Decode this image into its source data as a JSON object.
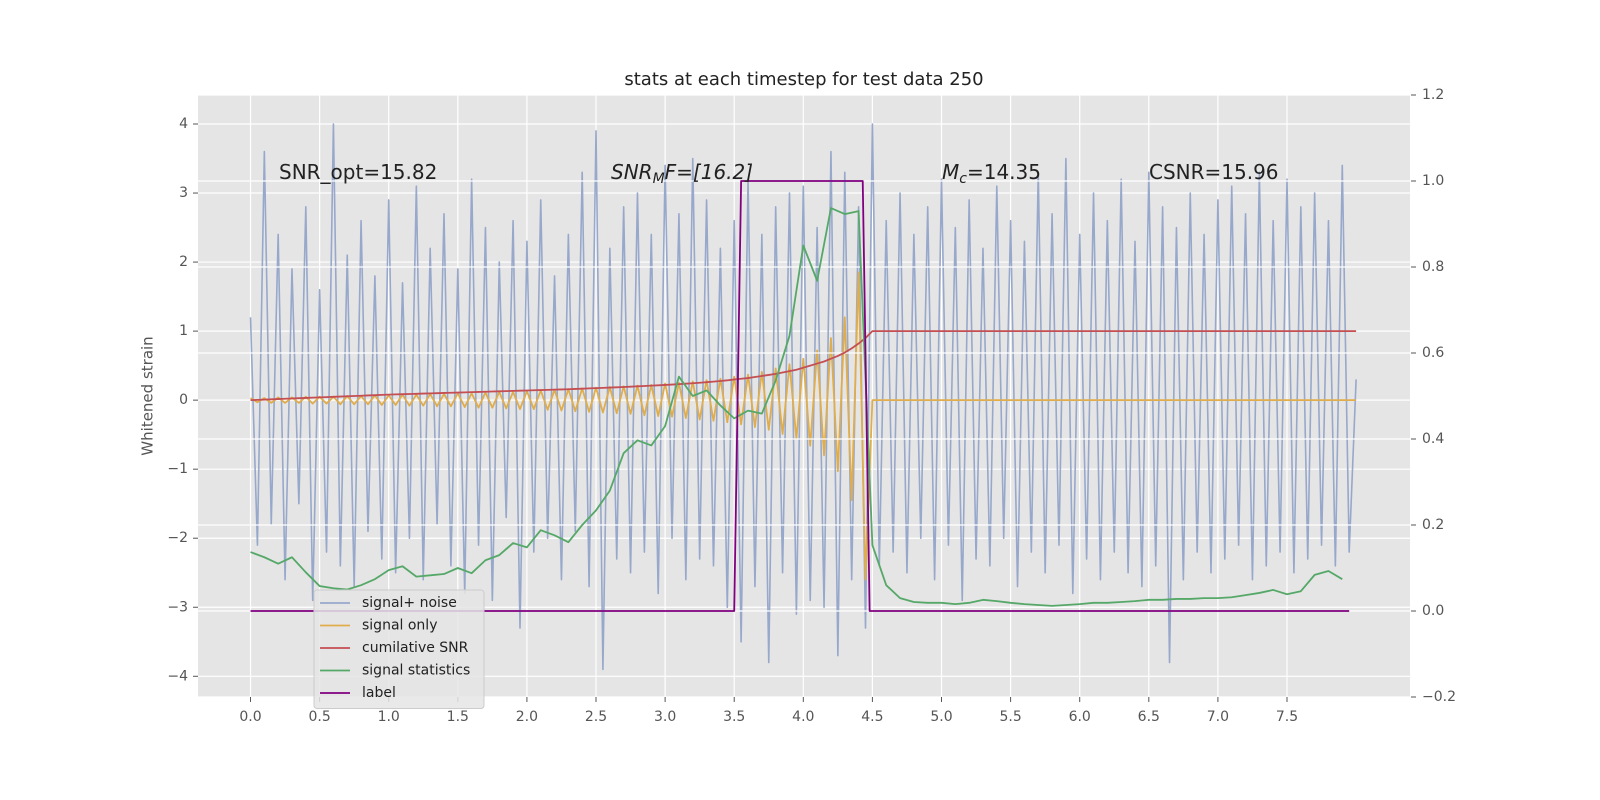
{
  "chart_data": {
    "type": "line",
    "title": "stats at each timestep for test data 250",
    "ylabel": "Whitened strain",
    "annotations": [
      [
        "SNR_opt=15.82"
      ],
      [
        "SNR",
        "M",
        "F=[16.2]"
      ],
      [
        "M",
        "c",
        "=14.35"
      ],
      [
        "CSNR=15.96"
      ]
    ],
    "xlim": [
      -0.38,
      8.39
    ],
    "ylim": [
      -4.3,
      4.42
    ],
    "y2lim": [
      -0.2,
      1.2
    ],
    "xticks": [
      {
        "value": 0,
        "label": "0.0"
      },
      0.5,
      {
        "value": 1,
        "label": "1.0"
      },
      1.5,
      {
        "value": 2,
        "label": "2.0"
      },
      2.5,
      {
        "value": 3,
        "label": "3.0"
      },
      3.5,
      {
        "value": 4,
        "label": "4.0"
      },
      4.5,
      {
        "value": 5,
        "label": "5.0"
      },
      5.5,
      {
        "value": 6,
        "label": "6.0"
      },
      6.5,
      {
        "value": 7,
        "label": "7.0"
      },
      7.5
    ],
    "yticks": [
      {
        "value": -4,
        "label": "−4"
      },
      {
        "value": -3,
        "label": "−3"
      },
      {
        "value": -2,
        "label": "−2"
      },
      {
        "value": -1,
        "label": "−1"
      },
      0,
      1,
      2,
      3,
      4
    ],
    "y2ticks": [
      {
        "value": -0.2,
        "label": "−0.2"
      },
      {
        "value": 0,
        "label": "0.0"
      },
      0.2,
      0.4,
      0.6,
      0.8,
      {
        "value": 1,
        "label": "1.0"
      },
      1.2
    ],
    "grid": true,
    "legend": "lower left",
    "x": [
      0,
      0.05,
      0.1,
      0.15,
      0.2,
      0.25,
      0.3,
      0.35,
      0.4,
      0.45,
      0.5,
      0.55,
      0.6,
      0.65,
      0.7,
      0.75,
      0.8,
      0.85,
      0.9,
      0.95,
      1,
      1.05,
      1.1,
      1.15,
      1.2,
      1.25,
      1.3,
      1.35,
      1.4,
      1.45,
      1.5,
      1.55,
      1.6,
      1.65,
      1.7,
      1.75,
      1.8,
      1.85,
      1.9,
      1.95,
      2,
      2.05,
      2.1,
      2.15,
      2.2,
      2.25,
      2.3,
      2.35,
      2.4,
      2.45,
      2.5,
      2.55,
      2.6,
      2.65,
      2.7,
      2.75,
      2.8,
      2.85,
      2.9,
      2.95,
      3,
      3.05,
      3.1,
      3.15,
      3.2,
      3.25,
      3.3,
      3.35,
      3.4,
      3.45,
      3.5,
      3.55,
      3.6,
      3.65,
      3.7,
      3.75,
      3.8,
      3.85,
      3.9,
      3.95,
      4,
      4.05,
      4.1,
      4.15,
      4.2,
      4.25,
      4.3,
      4.35,
      4.4,
      4.45,
      4.5,
      4.55,
      4.6,
      4.65,
      4.7,
      4.75,
      4.8,
      4.85,
      4.9,
      4.95,
      5,
      5.05,
      5.1,
      5.15,
      5.2,
      5.25,
      5.3,
      5.35,
      5.4,
      5.45,
      5.5,
      5.55,
      5.6,
      5.65,
      5.7,
      5.75,
      5.8,
      5.85,
      5.9,
      5.95,
      6,
      6.05,
      6.1,
      6.15,
      6.2,
      6.25,
      6.3,
      6.35,
      6.4,
      6.45,
      6.5,
      6.55,
      6.6,
      6.65,
      6.7,
      6.75,
      6.8,
      6.85,
      6.9,
      6.95,
      7,
      7.05,
      7.1,
      7.15,
      7.2,
      7.25,
      7.3,
      7.35,
      7.4,
      7.45,
      7.5,
      7.55,
      7.6,
      7.65,
      7.7,
      7.75,
      7.8,
      7.85,
      7.9,
      7.95,
      8
    ],
    "series": [
      {
        "name": "signal+ noise",
        "color": "#97a8cb",
        "values": [
          1.2,
          -2.1,
          3.6,
          -1.8,
          2.4,
          -2.6,
          1.9,
          -1.5,
          2.8,
          -2.9,
          1.6,
          -2.2,
          4.0,
          -2.4,
          2.1,
          -2.7,
          2.6,
          -1.9,
          1.8,
          -2.3,
          2.9,
          -2.5,
          1.7,
          -2.0,
          3.1,
          -2.6,
          2.2,
          -1.8,
          2.7,
          -2.4,
          1.9,
          -2.8,
          3.2,
          -2.1,
          2.5,
          -2.9,
          2.0,
          -1.7,
          2.6,
          -3.3,
          2.3,
          -2.2,
          2.9,
          -2.0,
          1.8,
          -2.6,
          2.4,
          -1.9,
          3.3,
          -2.7,
          3.9,
          -3.9,
          2.2,
          -2.3,
          2.8,
          -2.5,
          3.0,
          -2.2,
          2.4,
          -2.8,
          3.4,
          -2.0,
          2.7,
          -2.6,
          3.5,
          -2.3,
          2.9,
          -2.4,
          2.2,
          -3.0,
          2.6,
          -3.5,
          3.2,
          -2.7,
          2.4,
          -3.8,
          2.8,
          -2.5,
          3.0,
          -3.1,
          3.1,
          -2.9,
          2.5,
          -3.0,
          3.6,
          -3.7,
          3.3,
          -2.6,
          2.8,
          -3.3,
          4.0,
          -2.4,
          2.6,
          -2.2,
          3.0,
          -2.5,
          2.4,
          -2.0,
          2.8,
          -2.6,
          3.2,
          -2.1,
          2.5,
          -2.9,
          2.9,
          -2.3,
          2.2,
          -2.4,
          3.1,
          -2.0,
          2.6,
          -2.7,
          2.3,
          -2.2,
          3.3,
          -2.5,
          2.7,
          -2.1,
          3.5,
          -2.8,
          2.4,
          -2.3,
          3.0,
          -2.6,
          2.6,
          -2.2,
          3.2,
          -2.5,
          2.3,
          -2.7,
          3.3,
          -2.4,
          2.8,
          -3.8,
          2.5,
          -2.6,
          3.0,
          -2.2,
          2.4,
          -2.5,
          2.9,
          -2.3,
          3.1,
          -2.1,
          2.7,
          -2.6,
          3.3,
          -2.4,
          2.6,
          -2.2,
          3.2,
          -2.5,
          2.8,
          -2.3,
          3.0,
          -2.1,
          2.6,
          -2.4,
          3.4,
          -2.2,
          0.3
        ]
      },
      {
        "name": "signal only",
        "color": "#e0ad4c",
        "values": [
          0.03,
          -0.03,
          0.03,
          -0.04,
          0.04,
          -0.04,
          0.04,
          -0.04,
          0.05,
          -0.05,
          0.05,
          -0.05,
          0.05,
          -0.06,
          0.06,
          -0.06,
          0.06,
          -0.06,
          0.07,
          -0.07,
          0.07,
          -0.07,
          0.08,
          -0.08,
          0.08,
          -0.08,
          0.09,
          -0.09,
          0.09,
          -0.09,
          0.1,
          -0.1,
          0.1,
          -0.11,
          0.11,
          -0.11,
          0.12,
          -0.12,
          0.12,
          -0.13,
          0.13,
          -0.13,
          0.14,
          -0.14,
          0.15,
          -0.15,
          0.16,
          -0.16,
          0.17,
          -0.17,
          0.18,
          -0.18,
          0.19,
          -0.19,
          0.2,
          -0.2,
          0.21,
          -0.22,
          0.22,
          -0.23,
          0.24,
          -0.24,
          0.25,
          -0.26,
          0.27,
          -0.28,
          0.29,
          -0.3,
          0.31,
          -0.32,
          0.34,
          -0.35,
          0.37,
          -0.39,
          0.41,
          -0.43,
          0.46,
          -0.49,
          0.52,
          -0.56,
          0.6,
          -0.66,
          0.72,
          -0.8,
          0.9,
          -1.03,
          1.2,
          -1.45,
          1.85,
          -2.6,
          0,
          0,
          0,
          0,
          0,
          0,
          0,
          0,
          0,
          0,
          0,
          0,
          0,
          0,
          0,
          0,
          0,
          0,
          0,
          0,
          0,
          0,
          0,
          0,
          0,
          0,
          0,
          0,
          0,
          0,
          0,
          0,
          0,
          0,
          0,
          0,
          0,
          0,
          0,
          0,
          0,
          0,
          0,
          0,
          0,
          0,
          0,
          0,
          0,
          0,
          0,
          0,
          0,
          0,
          0,
          0,
          0,
          0,
          0,
          0,
          0,
          0,
          0,
          0,
          0,
          0,
          0,
          0,
          0,
          0,
          0
        ]
      },
      {
        "name": "cumilative SNR",
        "color": "#c44e52",
        "values": [
          0,
          0.004,
          0.008,
          0.012,
          0.016,
          0.02,
          0.024,
          0.028,
          0.032,
          0.036,
          0.04,
          0.044,
          0.048,
          0.052,
          0.056,
          0.06,
          0.064,
          0.068,
          0.072,
          0.076,
          0.08,
          0.083,
          0.086,
          0.089,
          0.092,
          0.095,
          0.098,
          0.101,
          0.104,
          0.107,
          0.11,
          0.113,
          0.116,
          0.119,
          0.122,
          0.125,
          0.128,
          0.131,
          0.134,
          0.137,
          0.14,
          0.143,
          0.146,
          0.149,
          0.152,
          0.155,
          0.158,
          0.162,
          0.166,
          0.17,
          0.174,
          0.178,
          0.182,
          0.186,
          0.19,
          0.195,
          0.2,
          0.205,
          0.21,
          0.215,
          0.22,
          0.226,
          0.232,
          0.238,
          0.245,
          0.252,
          0.26,
          0.268,
          0.277,
          0.287,
          0.3,
          0.31,
          0.32,
          0.335,
          0.35,
          0.365,
          0.38,
          0.4,
          0.42,
          0.44,
          0.47,
          0.5,
          0.53,
          0.56,
          0.6,
          0.64,
          0.69,
          0.75,
          0.82,
          0.9,
          1,
          1,
          1,
          1,
          1,
          1,
          1,
          1,
          1,
          1,
          1,
          1,
          1,
          1,
          1,
          1,
          1,
          1,
          1,
          1,
          1,
          1,
          1,
          1,
          1,
          1,
          1,
          1,
          1,
          1,
          1,
          1,
          1,
          1,
          1,
          1,
          1,
          1,
          1,
          1,
          1,
          1,
          1,
          1,
          1,
          1,
          1,
          1,
          1,
          1,
          1,
          1,
          1,
          1,
          1,
          1,
          1,
          1,
          1,
          1,
          1,
          1,
          1,
          1,
          1,
          1,
          1,
          1,
          1,
          1,
          1
        ]
      },
      {
        "name": "signal statistics",
        "color": "#55a868",
        "axis": "y2",
        "x": [
          0,
          0.1,
          0.2,
          0.3,
          0.4,
          0.5,
          0.6,
          0.7,
          0.8,
          0.9,
          1,
          1.1,
          1.2,
          1.3,
          1.4,
          1.5,
          1.6,
          1.7,
          1.8,
          1.9,
          2,
          2.1,
          2.2,
          2.3,
          2.4,
          2.5,
          2.6,
          2.7,
          2.8,
          2.9,
          3,
          3.1,
          3.2,
          3.3,
          3.4,
          3.5,
          3.6,
          3.7,
          3.8,
          3.9,
          4,
          4.1,
          4.2,
          4.3,
          4.4,
          4.5,
          4.6,
          4.7,
          4.8,
          4.9,
          5,
          5.1,
          5.2,
          5.3,
          5.4,
          5.5,
          5.6,
          5.7,
          5.8,
          5.9,
          6,
          6.1,
          6.2,
          6.3,
          6.4,
          6.5,
          6.6,
          6.7,
          6.8,
          6.9,
          7,
          7.1,
          7.2,
          7.3,
          7.4,
          7.5,
          7.6,
          7.7,
          7.8,
          7.9
        ],
        "values": [
          0.137,
          0.125,
          0.11,
          0.125,
          0.09,
          0.058,
          0.053,
          0.05,
          0.06,
          0.074,
          0.095,
          0.104,
          0.08,
          0.083,
          0.086,
          0.1,
          0.088,
          0.118,
          0.13,
          0.158,
          0.148,
          0.188,
          0.176,
          0.16,
          0.2,
          0.234,
          0.28,
          0.367,
          0.397,
          0.385,
          0.43,
          0.545,
          0.5,
          0.513,
          0.478,
          0.448,
          0.466,
          0.459,
          0.536,
          0.64,
          0.85,
          0.768,
          0.937,
          0.923,
          0.93,
          0.153,
          0.06,
          0.03,
          0.021,
          0.019,
          0.019,
          0.016,
          0.019,
          0.026,
          0.023,
          0.019,
          0.016,
          0.014,
          0.012,
          0.014,
          0.016,
          0.019,
          0.019,
          0.021,
          0.023,
          0.026,
          0.026,
          0.028,
          0.028,
          0.03,
          0.03,
          0.032,
          0.037,
          0.042,
          0.049,
          0.039,
          0.046,
          0.084,
          0.093,
          0.074
        ]
      },
      {
        "name": "label",
        "color": "#800080",
        "axis": "y2",
        "x": [
          0,
          3.5,
          3.55,
          4.43,
          4.48,
          7.95
        ],
        "values": [
          0,
          0,
          1,
          1,
          0,
          0
        ]
      }
    ]
  }
}
